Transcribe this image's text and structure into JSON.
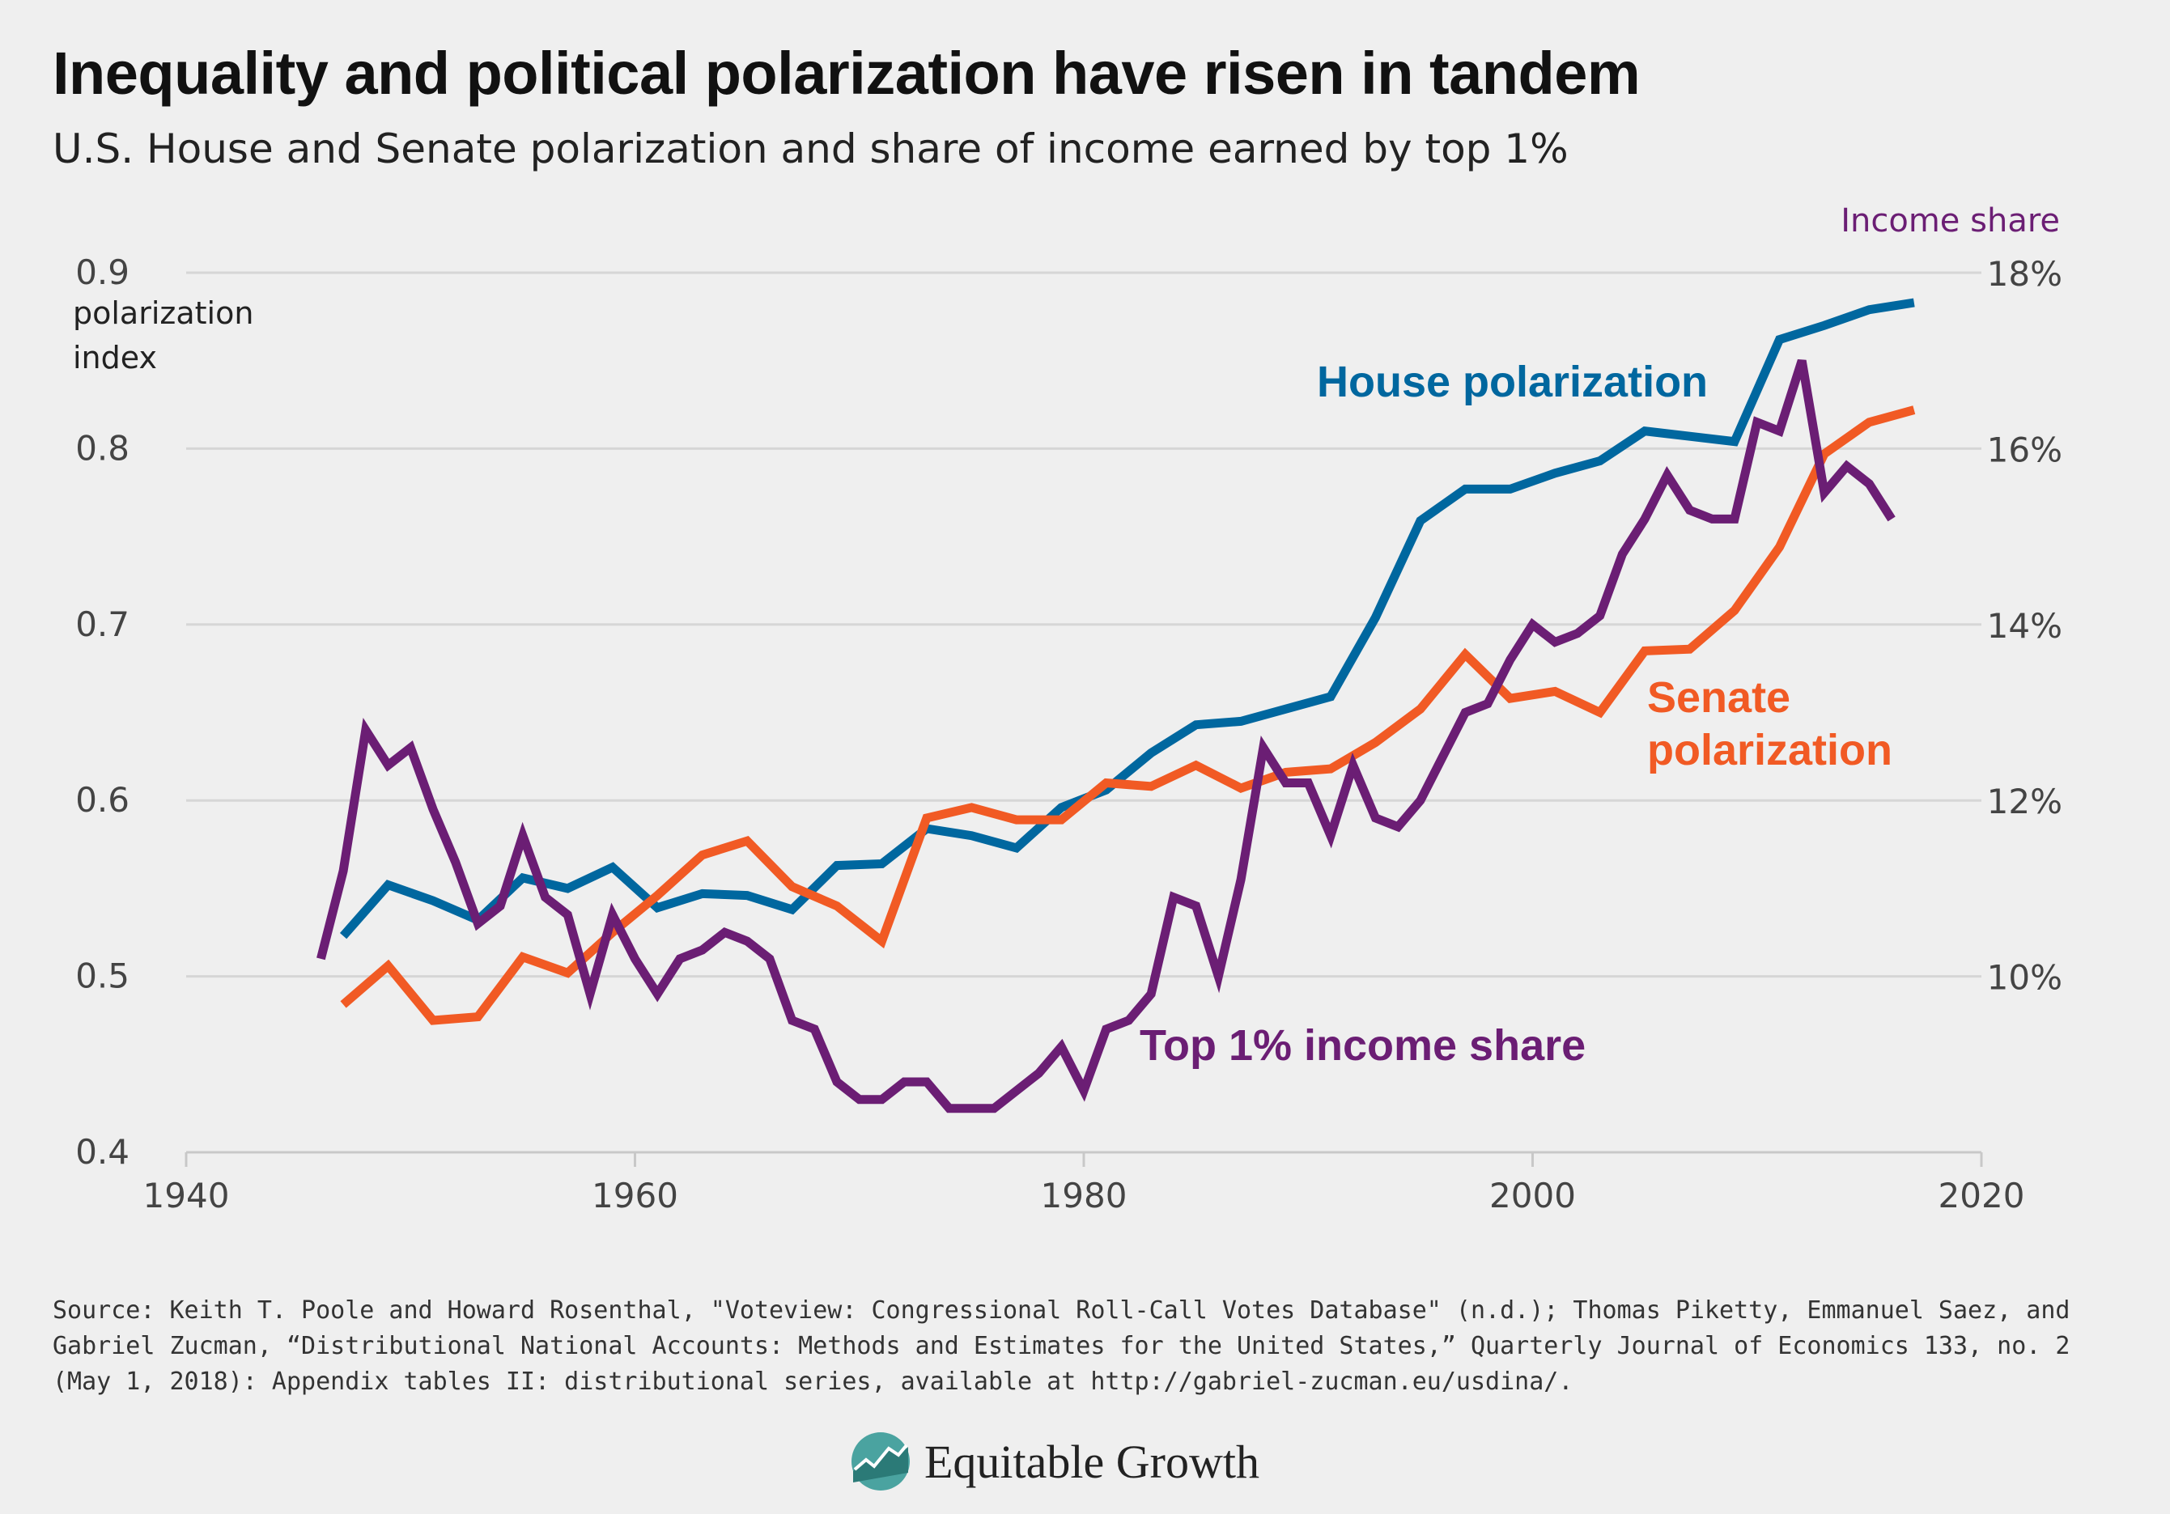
{
  "header": {
    "title": "Inequality and political polarization have risen in tandem",
    "subtitle": "U.S. House and Senate polarization and share of income earned by top 1%"
  },
  "chart_data": {
    "type": "line",
    "title": "Inequality and political polarization have risen in tandem",
    "subtitle": "U.S. House and Senate polarization and share of income earned by top 1%",
    "xlabel": "",
    "ylabel_left": [
      "polarization",
      "index"
    ],
    "ylabel_right": "Income share",
    "xlim": [
      1940,
      2020
    ],
    "x_ticks": [
      "1940",
      "1960",
      "1980",
      "2000",
      "2020"
    ],
    "ylim_left": [
      0.4,
      0.9
    ],
    "y_ticks_left": [
      "0.9",
      "0.8",
      "0.7",
      "0.6",
      "0.5",
      "0.4"
    ],
    "ylim_right": [
      8,
      18
    ],
    "y_ticks_right": [
      "18%",
      "16%",
      "14%",
      "12%",
      "10%"
    ],
    "grid": true,
    "colors": {
      "house": "#00679f",
      "senate": "#f15a24",
      "income": "#6b1e74",
      "grid": "#d6d6d6",
      "axis_label_right": "#6b1e74"
    },
    "series": [
      {
        "name": "House polarization",
        "axis": "left",
        "x": [
          1947,
          1949,
          1951,
          1953,
          1955,
          1957,
          1959,
          1961,
          1963,
          1965,
          1967,
          1969,
          1971,
          1973,
          1975,
          1977,
          1979,
          1981,
          1983,
          1985,
          1987,
          1989,
          1991,
          1993,
          1995,
          1997,
          1999,
          2001,
          2003,
          2005,
          2007,
          2009,
          2011,
          2013,
          2015,
          2017
        ],
        "values": [
          0.523,
          0.552,
          0.543,
          0.532,
          0.556,
          0.55,
          0.562,
          0.539,
          0.547,
          0.546,
          0.538,
          0.563,
          0.564,
          0.584,
          0.58,
          0.573,
          0.596,
          0.606,
          0.627,
          0.643,
          0.645,
          0.652,
          0.659,
          0.704,
          0.759,
          0.777,
          0.777,
          0.786,
          0.793,
          0.81,
          0.807,
          0.804,
          0.862,
          0.87,
          0.879,
          0.883
        ]
      },
      {
        "name": "Senate polarization",
        "axis": "left",
        "x": [
          1947,
          1949,
          1951,
          1953,
          1955,
          1957,
          1959,
          1961,
          1963,
          1965,
          1967,
          1969,
          1971,
          1973,
          1975,
          1977,
          1979,
          1981,
          1983,
          1985,
          1987,
          1989,
          1991,
          1993,
          1995,
          1997,
          1999,
          2001,
          2003,
          2005,
          2007,
          2009,
          2011,
          2013,
          2015,
          2017
        ],
        "values": [
          0.484,
          0.506,
          0.475,
          0.477,
          0.511,
          0.502,
          0.525,
          0.546,
          0.569,
          0.577,
          0.551,
          0.54,
          0.52,
          0.59,
          0.596,
          0.589,
          0.589,
          0.61,
          0.608,
          0.62,
          0.607,
          0.616,
          0.618,
          0.633,
          0.652,
          0.683,
          0.658,
          0.662,
          0.65,
          0.685,
          0.686,
          0.708,
          0.744,
          0.797,
          0.815,
          0.822
        ]
      },
      {
        "name": "Top 1% income share",
        "axis": "right",
        "x": [
          1946,
          1947,
          1948,
          1949,
          1950,
          1951,
          1952,
          1953,
          1954,
          1955,
          1956,
          1957,
          1958,
          1959,
          1960,
          1961,
          1962,
          1963,
          1964,
          1965,
          1966,
          1967,
          1968,
          1969,
          1970,
          1971,
          1972,
          1973,
          1974,
          1975,
          1976,
          1977,
          1978,
          1979,
          1980,
          1981,
          1982,
          1983,
          1984,
          1985,
          1986,
          1987,
          1988,
          1989,
          1990,
          1991,
          1992,
          1993,
          1994,
          1995,
          1996,
          1997,
          1998,
          1999,
          2000,
          2001,
          2002,
          2003,
          2004,
          2005,
          2006,
          2007,
          2008,
          2009,
          2010,
          2011,
          2012,
          2013,
          2014,
          2015,
          2016
        ],
        "values": [
          10.2,
          11.2,
          12.8,
          12.4,
          12.6,
          11.9,
          11.3,
          10.6,
          10.8,
          11.6,
          10.9,
          10.7,
          9.8,
          10.7,
          10.2,
          9.8,
          10.2,
          10.3,
          10.5,
          10.4,
          10.2,
          9.5,
          9.4,
          8.8,
          8.6,
          8.6,
          8.8,
          8.8,
          8.5,
          8.5,
          8.5,
          8.7,
          8.9,
          9.2,
          8.7,
          9.4,
          9.5,
          9.8,
          10.9,
          10.8,
          10.0,
          11.1,
          12.6,
          12.2,
          12.2,
          11.6,
          12.4,
          11.8,
          11.7,
          12.0,
          12.5,
          13.0,
          13.1,
          13.6,
          14.0,
          13.8,
          13.9,
          14.1,
          14.8,
          15.2,
          15.7,
          15.3,
          15.2,
          15.2,
          16.3,
          16.2,
          17.0,
          15.5,
          15.8,
          15.6,
          15.2
        ]
      }
    ],
    "annotations": {
      "house": "House polarization",
      "senate_line1": "Senate",
      "senate_line2": "polarization",
      "income": "Top 1% income share"
    }
  },
  "footer": {
    "source": "Source: Keith T. Poole and Howard Rosenthal, \"Voteview: Congressional Roll-Call Votes Database\" (n.d.); Thomas Piketty, Emmanuel Saez, and Gabriel Zucman, “Distributional National Accounts: Methods and Estimates for the United States,” Quarterly Journal of Economics 133, no. 2 (May 1, 2018): Appendix tables II: distributional series, available at http://gabriel-zucman.eu/usdina/.",
    "logo_text": "Equitable Growth",
    "logo_icon": "equitable-growth-logo-icon"
  }
}
